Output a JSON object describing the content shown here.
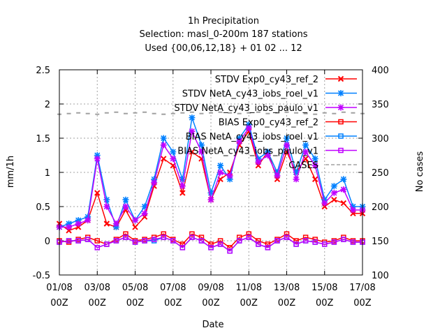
{
  "chart_data": {
    "type": "line",
    "title_lines": [
      "1h Precipitation",
      "Selection: masl_0-200m    187 stations",
      "Used {00,06,12,18} + 01 02 ... 12"
    ],
    "xlabel": "Date",
    "ylabel": "mm/1h",
    "y2label": "No cases",
    "xlim": [
      "2016-08-01 00:00",
      "2016-08-17 00:00"
    ],
    "ylim": [
      -0.5,
      2.5
    ],
    "y2lim": [
      100,
      400
    ],
    "x_ticks": [
      {
        "date": "2016-08-01",
        "label": [
          "01/08",
          "00Z"
        ]
      },
      {
        "date": "2016-08-03",
        "label": [
          "03/08",
          "00Z"
        ]
      },
      {
        "date": "2016-08-05",
        "label": [
          "05/08",
          "00Z"
        ]
      },
      {
        "date": "2016-08-07",
        "label": [
          "07/08",
          "00Z"
        ]
      },
      {
        "date": "2016-08-09",
        "label": [
          "09/08",
          "00Z"
        ]
      },
      {
        "date": "2016-08-11",
        "label": [
          "11/08",
          "00Z"
        ]
      },
      {
        "date": "2016-08-13",
        "label": [
          "13/08",
          "00Z"
        ]
      },
      {
        "date": "2016-08-15",
        "label": [
          "15/08",
          "00Z"
        ]
      },
      {
        "date": "2016-08-17",
        "label": [
          "17/08",
          "00Z"
        ]
      }
    ],
    "y_ticks": [
      "-0.5",
      "0",
      "0.5",
      "1",
      "1.5",
      "2",
      "2.5"
    ],
    "y2_ticks": [
      "100",
      "150",
      "200",
      "250",
      "300",
      "350",
      "400"
    ],
    "grid": true,
    "legend_position": "top-right",
    "x_dates": [
      "2016-08-01 00:00",
      "2016-08-01 12:00",
      "2016-08-02 00:00",
      "2016-08-02 12:00",
      "2016-08-03 00:00",
      "2016-08-03 12:00",
      "2016-08-04 00:00",
      "2016-08-04 12:00",
      "2016-08-05 00:00",
      "2016-08-05 12:00",
      "2016-08-06 00:00",
      "2016-08-06 12:00",
      "2016-08-07 00:00",
      "2016-08-07 12:00",
      "2016-08-08 00:00",
      "2016-08-08 12:00",
      "2016-08-09 00:00",
      "2016-08-09 12:00",
      "2016-08-10 00:00",
      "2016-08-10 12:00",
      "2016-08-11 00:00",
      "2016-08-11 12:00",
      "2016-08-12 00:00",
      "2016-08-12 12:00",
      "2016-08-13 00:00",
      "2016-08-13 12:00",
      "2016-08-14 00:00",
      "2016-08-14 12:00",
      "2016-08-15 00:00",
      "2016-08-15 12:00",
      "2016-08-16 00:00",
      "2016-08-16 12:00",
      "2016-08-17 00:00"
    ],
    "series": [
      {
        "name": "STDV Exp0_cy43_ref_2",
        "axis": "y",
        "color": "#ff0000",
        "marker": "x",
        "values": [
          0.25,
          0.15,
          0.2,
          0.3,
          0.7,
          0.25,
          0.2,
          0.45,
          0.2,
          0.35,
          0.8,
          1.2,
          1.1,
          0.7,
          1.3,
          1.2,
          0.6,
          0.9,
          1.0,
          1.4,
          1.6,
          1.1,
          1.3,
          0.9,
          1.3,
          1.0,
          1.2,
          0.9,
          0.5,
          0.6,
          0.55,
          0.4,
          0.4
        ]
      },
      {
        "name": "STDV NetA_cy43_iobs_roel_v1",
        "axis": "y",
        "color": "#0080ff",
        "marker": "star",
        "values": [
          0.2,
          0.25,
          0.3,
          0.35,
          1.25,
          0.6,
          0.2,
          0.6,
          0.3,
          0.5,
          0.9,
          1.5,
          1.3,
          0.9,
          1.8,
          1.4,
          0.7,
          1.1,
          0.9,
          1.5,
          1.7,
          1.2,
          1.3,
          1.0,
          1.5,
          1.0,
          1.4,
          1.2,
          0.6,
          0.8,
          0.9,
          0.5,
          0.5
        ]
      },
      {
        "name": "STDV NetA_cy43_iobs_paulo_v1",
        "axis": "y",
        "color": "#c000ff",
        "marker": "star",
        "values": [
          0.2,
          0.2,
          0.25,
          0.3,
          1.2,
          0.5,
          0.25,
          0.5,
          0.3,
          0.4,
          0.85,
          1.4,
          1.2,
          0.8,
          1.6,
          1.3,
          0.6,
          1.0,
          0.95,
          1.45,
          1.65,
          1.15,
          1.25,
          0.95,
          1.4,
          0.9,
          1.3,
          1.1,
          0.55,
          0.7,
          0.75,
          0.45,
          0.45
        ]
      },
      {
        "name": "BIAS Exp0_cy43_ref_2",
        "axis": "y",
        "color": "#ff0000",
        "marker": "square",
        "values": [
          0.0,
          -0.02,
          0.02,
          0.05,
          0.0,
          -0.05,
          0.02,
          0.1,
          0.0,
          0.02,
          0.05,
          0.1,
          0.02,
          -0.05,
          0.1,
          0.05,
          -0.05,
          0.0,
          -0.1,
          0.05,
          0.1,
          0.0,
          -0.05,
          0.02,
          0.1,
          0.0,
          0.05,
          0.02,
          -0.02,
          0.0,
          0.05,
          0.0,
          0.0
        ]
      },
      {
        "name": "BIAS NetA_cy43_iobs_roel_v1",
        "axis": "y",
        "color": "#0080ff",
        "marker": "square",
        "values": [
          -0.02,
          0.0,
          0.0,
          0.02,
          -0.1,
          -0.05,
          0.0,
          0.05,
          -0.02,
          0.0,
          0.0,
          0.05,
          0.0,
          -0.1,
          0.05,
          0.0,
          -0.1,
          -0.05,
          -0.15,
          0.0,
          0.05,
          -0.05,
          -0.1,
          0.0,
          0.05,
          -0.05,
          0.0,
          -0.02,
          -0.05,
          -0.02,
          0.02,
          -0.02,
          -0.02
        ]
      },
      {
        "name": "BIAS NetA_cy43_iobs_paulo_v1",
        "axis": "y",
        "color": "#c000ff",
        "marker": "square",
        "values": [
          -0.02,
          0.0,
          0.0,
          0.02,
          -0.1,
          -0.05,
          0.0,
          0.05,
          -0.02,
          0.0,
          0.02,
          0.05,
          0.0,
          -0.1,
          0.05,
          0.0,
          -0.1,
          -0.05,
          -0.15,
          0.0,
          0.05,
          -0.05,
          -0.1,
          0.0,
          0.05,
          -0.05,
          0.0,
          -0.02,
          -0.05,
          -0.02,
          0.02,
          -0.02,
          -0.02
        ]
      },
      {
        "name": "CASES",
        "axis": "y2",
        "color": "#a0a0a0",
        "marker": "dash",
        "values": [
          335,
          336,
          337,
          336,
          335,
          337,
          338,
          336,
          337,
          338,
          336,
          335,
          336,
          337,
          338,
          336,
          337,
          338,
          337,
          336,
          337,
          338,
          336,
          337,
          338,
          337,
          336,
          335,
          337,
          336,
          338,
          337,
          336
        ]
      }
    ]
  }
}
